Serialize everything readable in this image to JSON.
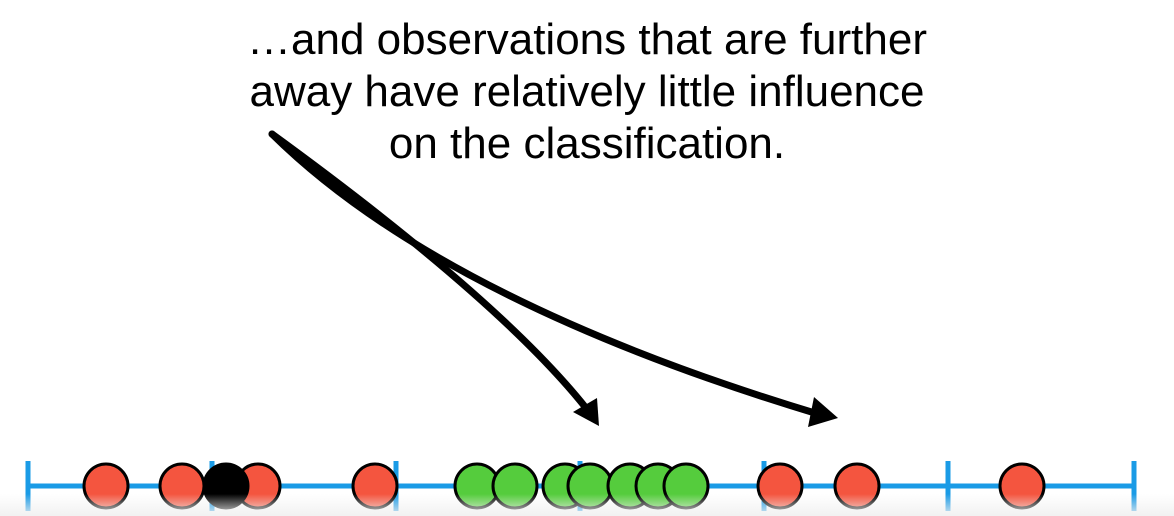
{
  "caption": {
    "line1": "…and observations that are further",
    "line2": "away have relatively little influence",
    "line3": "on the classification."
  },
  "colors": {
    "axis": "#1a9be6",
    "red_point": "#f4553f",
    "green_point": "#55cc3d",
    "black_point": "#000000",
    "arrow": "#000000"
  },
  "number_line": {
    "points": [
      {
        "color": "red"
      },
      {
        "color": "red"
      },
      {
        "color": "black"
      },
      {
        "color": "red"
      },
      {
        "color": "red"
      },
      {
        "color": "green"
      },
      {
        "color": "green"
      },
      {
        "color": "green"
      },
      {
        "color": "green"
      },
      {
        "color": "green"
      },
      {
        "color": "green"
      },
      {
        "color": "green"
      },
      {
        "color": "red"
      },
      {
        "color": "red"
      },
      {
        "color": "red"
      }
    ]
  }
}
